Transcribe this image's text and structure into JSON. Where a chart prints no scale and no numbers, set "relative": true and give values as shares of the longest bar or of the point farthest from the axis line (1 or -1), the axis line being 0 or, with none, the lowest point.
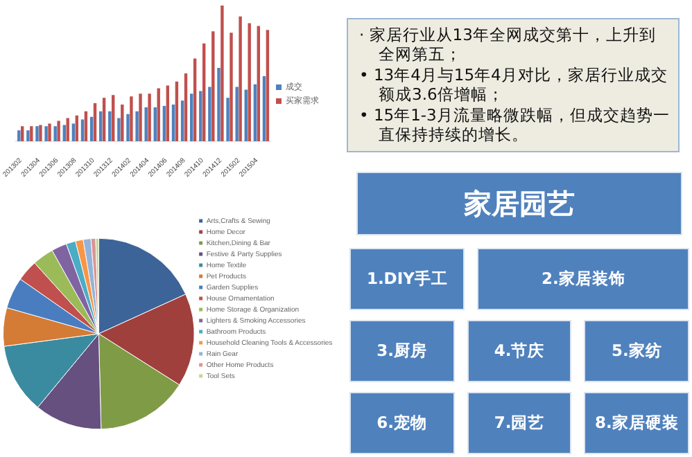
{
  "chart_data": [
    {
      "type": "bar",
      "relative": true,
      "legend": "right",
      "categories": [
        "201302",
        null,
        "201304",
        null,
        "201306",
        null,
        "201308",
        null,
        "201310",
        null,
        "201312",
        null,
        "201402",
        null,
        "201404",
        null,
        "201406",
        null,
        "201408",
        null,
        "201410",
        null,
        "201412",
        null,
        "201502",
        null,
        "201504",
        null
      ],
      "series": [
        {
          "name": "成交",
          "color": "#4f81bd",
          "values": [
            0.08,
            0.08,
            0.11,
            0.11,
            0.11,
            0.12,
            0.13,
            0.16,
            0.18,
            0.22,
            0.22,
            0.17,
            0.2,
            0.22,
            0.25,
            0.25,
            0.26,
            0.27,
            0.3,
            0.35,
            0.37,
            0.4,
            0.54,
            0.32,
            0.4,
            0.38,
            0.42,
            0.48
          ]
        },
        {
          "name": "买家需求",
          "color": "#c0504d",
          "values": [
            0.11,
            0.11,
            0.12,
            0.13,
            0.15,
            0.17,
            0.19,
            0.22,
            0.28,
            0.32,
            0.34,
            0.27,
            0.33,
            0.35,
            0.35,
            0.39,
            0.41,
            0.44,
            0.5,
            0.61,
            0.72,
            0.81,
            1,
            0.8,
            0.92,
            0.87,
            0.85,
            0.82
          ]
        }
      ]
    },
    {
      "type": "pie",
      "legend": "right",
      "categories": [
        "Arts,Crafts & Sewing",
        "Home Decor",
        "Kitchen,Dining & Bar",
        "Festive & Party Supplies",
        "Home Textile",
        "Pet Products",
        "Garden Supplies",
        "House Ornamentation",
        "Home Storage & Organization",
        "Lighters & Smoking Accessories",
        "Bathroom Products",
        "Household Cleaning Tools & Accessories",
        "Rain Gear",
        "Other Home Products",
        "Tool Sets"
      ],
      "values": [
        18.2,
        15.8,
        15.6,
        11.4,
        11.9,
        6.5,
        5.3,
        3.6,
        3.6,
        2.6,
        1.6,
        1.3,
        1.3,
        0.8,
        0.5
      ],
      "colors": [
        "#3c6498",
        "#a0403d",
        "#7f9b46",
        "#66507f",
        "#3b8ba0",
        "#d47b35",
        "#4a7dc0",
        "#c0504d",
        "#9bbb59",
        "#8064a2",
        "#4bacc6",
        "#f79646",
        "#95b3d7",
        "#d99694",
        "#c3d69b"
      ]
    },
    {
      "type": "other",
      "annotations": [
        "·  家居行业从13年全网成交第十，上升到全网第五；",
        "•  13年4月与15年4月对比，家居行业成交额成3.6倍增幅；",
        "•  15年1-3月流量略微跌幅，但成交趋势一直保持持续的增长。"
      ]
    },
    {
      "type": "other",
      "title": "家居园艺",
      "annotations": [
        "1.DIY手工",
        "2.家居装饰",
        "3.厨房",
        "4.节庆",
        "5.家纺",
        "6.宠物",
        "7.园艺",
        "8.家居硬装"
      ]
    }
  ]
}
